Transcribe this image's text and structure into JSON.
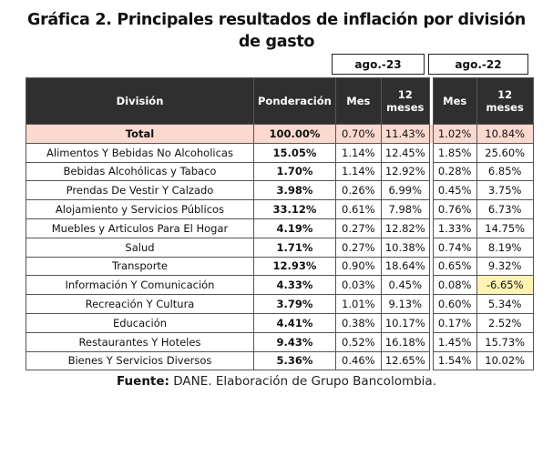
{
  "title_line1": "Gráfica 2. Principales resultados de inflación por división",
  "title_line2": "de gasto",
  "periods": [
    "ago.-23",
    "ago.-22"
  ],
  "headers": {
    "division": "División",
    "ponderacion": "Ponderación",
    "mes1": "Mes",
    "doce1": "12 meses",
    "mes2": "Mes",
    "doce2": "12 meses"
  },
  "rows": [
    {
      "division": "Total",
      "ponderacion": "100.00%",
      "mes23": "0.70%",
      "doce23": "11.43%",
      "mes22": "1.02%",
      "doce22": "10.84%"
    },
    {
      "division": "Alimentos Y Bebidas No Alcoholicas",
      "ponderacion": "15.05%",
      "mes23": "1.14%",
      "doce23": "12.45%",
      "mes22": "1.85%",
      "doce22": "25.60%"
    },
    {
      "division": "Bebidas Alcohólicas y Tabaco",
      "ponderacion": "1.70%",
      "mes23": "1.14%",
      "doce23": "12.92%",
      "mes22": "0.28%",
      "doce22": "6.85%"
    },
    {
      "division": "Prendas De Vestir Y Calzado",
      "ponderacion": "3.98%",
      "mes23": "0.26%",
      "doce23": "6.99%",
      "mes22": "0.45%",
      "doce22": "3.75%"
    },
    {
      "division": "Alojamiento y Servicios Públicos",
      "ponderacion": "33.12%",
      "mes23": "0.61%",
      "doce23": "7.98%",
      "mes22": "0.76%",
      "doce22": "6.73%"
    },
    {
      "division": "Muebles y Articulos Para El Hogar",
      "ponderacion": "4.19%",
      "mes23": "0.27%",
      "doce23": "12.82%",
      "mes22": "1.33%",
      "doce22": "14.75%"
    },
    {
      "division": "Salud",
      "ponderacion": "1.71%",
      "mes23": "0.27%",
      "doce23": "10.38%",
      "mes22": "0.74%",
      "doce22": "8.19%"
    },
    {
      "division": "Transporte",
      "ponderacion": "12.93%",
      "mes23": "0.90%",
      "doce23": "18.64%",
      "mes22": "0.65%",
      "doce22": "9.32%"
    },
    {
      "division": "Información Y Comunicación",
      "ponderacion": "4.33%",
      "mes23": "0.03%",
      "doce23": "0.45%",
      "mes22": "0.08%",
      "doce22": "-6.65%"
    },
    {
      "division": "Recreación Y Cultura",
      "ponderacion": "3.79%",
      "mes23": "1.01%",
      "doce23": "9.13%",
      "mes22": "0.60%",
      "doce22": "5.34%"
    },
    {
      "division": "Educación",
      "ponderacion": "4.41%",
      "mes23": "0.38%",
      "doce23": "10.17%",
      "mes22": "0.17%",
      "doce22": "2.52%"
    },
    {
      "division": "Restaurantes Y Hoteles",
      "ponderacion": "9.43%",
      "mes23": "0.52%",
      "doce23": "16.18%",
      "mes22": "1.45%",
      "doce22": "15.73%"
    },
    {
      "division": "Bienes Y Servicios Diversos",
      "ponderacion": "5.36%",
      "mes23": "0.46%",
      "doce23": "12.65%",
      "mes22": "1.54%",
      "doce22": "10.02%"
    }
  ],
  "source_label": "Fuente:",
  "source_text": " DANE. Elaboración de Grupo Bancolombia.",
  "colors": {
    "header_bg": "#2f2f2f",
    "total_bg": "#fcd9cf",
    "highlight": "#fff3b3"
  }
}
